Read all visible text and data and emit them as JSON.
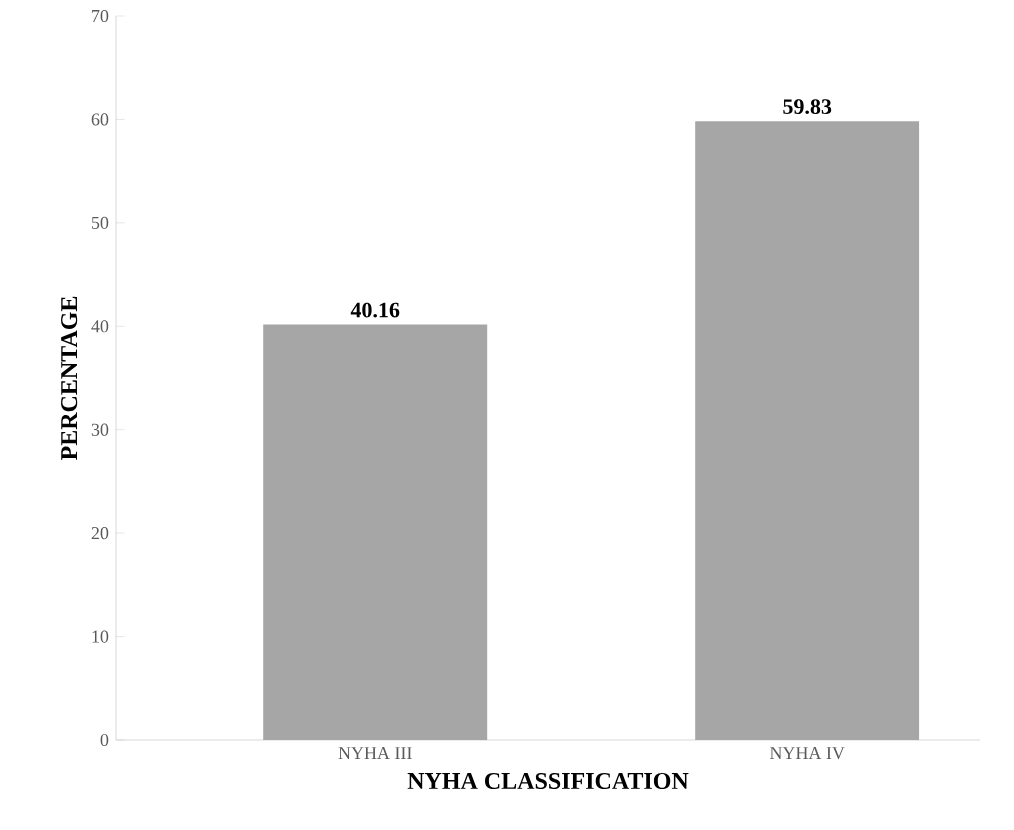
{
  "chart_data": {
    "type": "bar",
    "xlabel": "NYHA CLASSIFICATION",
    "ylabel": "PERCENTAGE",
    "categories": [
      "NYHA III",
      "NYHA IV"
    ],
    "values": [
      40.16,
      59.83
    ],
    "color": "#a6a6a6",
    "ylim": [
      0,
      70
    ],
    "yticks": [
      0,
      10,
      20,
      30,
      40,
      50,
      60,
      70
    ],
    "data_labels": true,
    "grid": false
  }
}
